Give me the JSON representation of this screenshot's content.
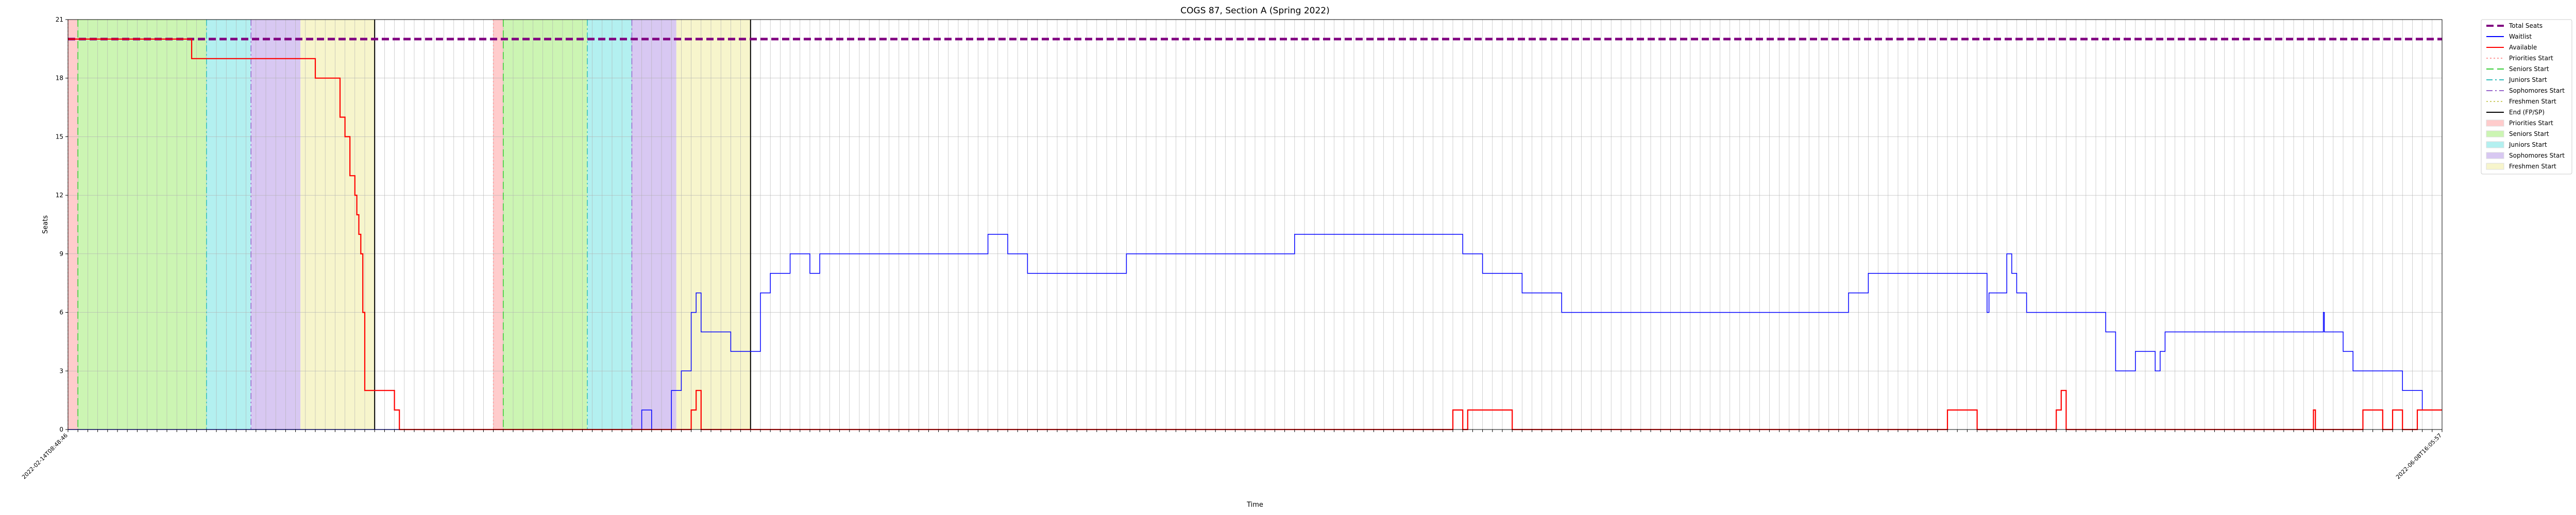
{
  "chart_data": {
    "type": "line",
    "title": "COGS 87, Section A (Spring 2022)",
    "xlabel": "Time",
    "ylabel": "Seats",
    "ylim": [
      0,
      21
    ],
    "yticks": [
      0,
      3,
      6,
      9,
      12,
      15,
      18,
      21
    ],
    "grid": true,
    "legend_placement": "outside-right-top",
    "x_index_range": [
      0,
      240
    ],
    "x_tick_count": 241,
    "x_tick_label_first": "2022-02-14T08:48:46",
    "x_tick_label_last": "2022-06-08T16:05:57",
    "series": [
      {
        "name": "Total Seats",
        "color": "#800080",
        "style": "dashed",
        "points": [
          [
            0,
            20
          ],
          [
            240,
            20
          ]
        ]
      },
      {
        "name": "Waitlist",
        "color": "#0000ff",
        "style": "solid",
        "points": [
          [
            0,
            0
          ],
          [
            58,
            0
          ],
          [
            58,
            1
          ],
          [
            59,
            1
          ],
          [
            59,
            0
          ],
          [
            61,
            0
          ],
          [
            61,
            2
          ],
          [
            62,
            2
          ],
          [
            62,
            3
          ],
          [
            63,
            3
          ],
          [
            63,
            6
          ],
          [
            63.5,
            6
          ],
          [
            63.5,
            7
          ],
          [
            64,
            7
          ],
          [
            64,
            5
          ],
          [
            67,
            5
          ],
          [
            67,
            4
          ],
          [
            70,
            4
          ],
          [
            70,
            7
          ],
          [
            71,
            7
          ],
          [
            71,
            8
          ],
          [
            73,
            8
          ],
          [
            73,
            9
          ],
          [
            75,
            9
          ],
          [
            75,
            8
          ],
          [
            76,
            8
          ],
          [
            76,
            9
          ],
          [
            93,
            9
          ],
          [
            93,
            10
          ],
          [
            95,
            10
          ],
          [
            95,
            9
          ],
          [
            97,
            9
          ],
          [
            97,
            8
          ],
          [
            107,
            8
          ],
          [
            107,
            9
          ],
          [
            124,
            9
          ],
          [
            124,
            10
          ],
          [
            141,
            10
          ],
          [
            141,
            9
          ],
          [
            143,
            9
          ],
          [
            143,
            8
          ],
          [
            147,
            8
          ],
          [
            147,
            7
          ],
          [
            151,
            7
          ],
          [
            151,
            6
          ],
          [
            180,
            6
          ],
          [
            180,
            7
          ],
          [
            182,
            7
          ],
          [
            182,
            8
          ],
          [
            194,
            8
          ],
          [
            194,
            6
          ],
          [
            194.2,
            6
          ],
          [
            194.2,
            7
          ],
          [
            196,
            7
          ],
          [
            196,
            9
          ],
          [
            196.5,
            9
          ],
          [
            196.5,
            8
          ],
          [
            197,
            8
          ],
          [
            197,
            7
          ],
          [
            198,
            7
          ],
          [
            198,
            6
          ],
          [
            206,
            6
          ],
          [
            206,
            5
          ],
          [
            207,
            5
          ],
          [
            207,
            3
          ],
          [
            209,
            3
          ],
          [
            209,
            4
          ],
          [
            211,
            4
          ],
          [
            211,
            3
          ],
          [
            211.5,
            3
          ],
          [
            211.5,
            4
          ],
          [
            212,
            4
          ],
          [
            212,
            5
          ],
          [
            228,
            5
          ],
          [
            228,
            6
          ],
          [
            228.1,
            6
          ],
          [
            228.1,
            5
          ],
          [
            230,
            5
          ],
          [
            230,
            4
          ],
          [
            231,
            4
          ],
          [
            231,
            3
          ],
          [
            236,
            3
          ],
          [
            236,
            2
          ],
          [
            238,
            2
          ],
          [
            238,
            1
          ],
          [
            240,
            1
          ]
        ]
      },
      {
        "name": "Available",
        "color": "#ff0000",
        "style": "solid",
        "points": [
          [
            0,
            20
          ],
          [
            12.5,
            20
          ],
          [
            12.5,
            19
          ],
          [
            25,
            19
          ],
          [
            25,
            18
          ],
          [
            27.5,
            18
          ],
          [
            27.5,
            16
          ],
          [
            28,
            16
          ],
          [
            28,
            15
          ],
          [
            28.5,
            15
          ],
          [
            28.5,
            13
          ],
          [
            29,
            13
          ],
          [
            29,
            12
          ],
          [
            29.2,
            12
          ],
          [
            29.2,
            11
          ],
          [
            29.4,
            11
          ],
          [
            29.4,
            10
          ],
          [
            29.6,
            10
          ],
          [
            29.6,
            9
          ],
          [
            29.8,
            9
          ],
          [
            29.8,
            6
          ],
          [
            30,
            6
          ],
          [
            30,
            2
          ],
          [
            33,
            2
          ],
          [
            33,
            1
          ],
          [
            33.5,
            1
          ],
          [
            33.5,
            0
          ],
          [
            63,
            0
          ],
          [
            63,
            1
          ],
          [
            63.5,
            1
          ],
          [
            63.5,
            2
          ],
          [
            64,
            2
          ],
          [
            64,
            0
          ],
          [
            140,
            0
          ],
          [
            140,
            1
          ],
          [
            141,
            1
          ],
          [
            141,
            0
          ],
          [
            141.5,
            0
          ],
          [
            141.5,
            1
          ],
          [
            146,
            1
          ],
          [
            146,
            0
          ],
          [
            190,
            0
          ],
          [
            190,
            1
          ],
          [
            193,
            1
          ],
          [
            193,
            0
          ],
          [
            201,
            0
          ],
          [
            201,
            1
          ],
          [
            201.5,
            1
          ],
          [
            201.5,
            2
          ],
          [
            202,
            2
          ],
          [
            202,
            0
          ],
          [
            227,
            0
          ],
          [
            227,
            1
          ],
          [
            227.2,
            1
          ],
          [
            227.2,
            0
          ],
          [
            232,
            0
          ],
          [
            232,
            1
          ],
          [
            234,
            1
          ],
          [
            234,
            0
          ],
          [
            235,
            0
          ],
          [
            235,
            1
          ],
          [
            236,
            1
          ],
          [
            236,
            0
          ],
          [
            237.5,
            0
          ],
          [
            237.5,
            1
          ],
          [
            240,
            1
          ]
        ]
      }
    ],
    "phases": [
      {
        "name": "Priorities Start",
        "start": 0,
        "end": 1,
        "fill": "#ffcccc"
      },
      {
        "name": "Seniors Start",
        "start": 1,
        "end": 14,
        "fill": "#ccf5b3"
      },
      {
        "name": "Juniors Start",
        "start": 14,
        "end": 18.5,
        "fill": "#b3f0f0"
      },
      {
        "name": "Sophomores Start",
        "start": 18.5,
        "end": 23.5,
        "fill": "#d8c8f2"
      },
      {
        "name": "Freshmen Start",
        "start": 23.5,
        "end": 31,
        "fill": "#f7f5cc"
      },
      {
        "name": "Priorities Start",
        "start": 43,
        "end": 44,
        "fill": "#ffcccc"
      },
      {
        "name": "Seniors Start",
        "start": 44,
        "end": 52.5,
        "fill": "#ccf5b3"
      },
      {
        "name": "Juniors Start",
        "start": 52.5,
        "end": 57,
        "fill": "#b3f0f0"
      },
      {
        "name": "Sophomores Start",
        "start": 57,
        "end": 61.5,
        "fill": "#d8c8f2"
      },
      {
        "name": "Freshmen Start",
        "start": 61.5,
        "end": 69,
        "fill": "#f7f5cc"
      }
    ],
    "phase_lines": [
      {
        "name": "Priorities Start",
        "x": 0,
        "color": "#ff9999",
        "style": "dotted"
      },
      {
        "name": "Seniors Start",
        "x": 1,
        "color": "#33cc33",
        "style": "dashed"
      },
      {
        "name": "Juniors Start",
        "x": 14,
        "color": "#33bbbb",
        "style": "dashdot"
      },
      {
        "name": "Sophomores Start",
        "x": 18.5,
        "color": "#9966cc",
        "style": "dashdot"
      },
      {
        "name": "End (FP/SP)",
        "x": 31,
        "color": "#000000",
        "style": "solid"
      },
      {
        "name": "Priorities Start",
        "x": 43,
        "color": "#ff9999",
        "style": "dotted"
      },
      {
        "name": "Seniors Start",
        "x": 44,
        "color": "#33cc33",
        "style": "dashed"
      },
      {
        "name": "Juniors Start",
        "x": 52.5,
        "color": "#33bbbb",
        "style": "dashdot"
      },
      {
        "name": "Sophomores Start",
        "x": 57,
        "color": "#9966cc",
        "style": "dashdot"
      },
      {
        "name": "End (FP/SP)",
        "x": 69,
        "color": "#000000",
        "style": "solid"
      }
    ],
    "legend": [
      {
        "label": "Total Seats",
        "kind": "line",
        "color": "#800080",
        "style": "dashed"
      },
      {
        "label": "Waitlist",
        "kind": "line",
        "color": "#0000ff",
        "style": "solid"
      },
      {
        "label": "Available",
        "kind": "line",
        "color": "#ff0000",
        "style": "solid"
      },
      {
        "label": "Priorities Start",
        "kind": "line",
        "color": "#ff9999",
        "style": "dotted"
      },
      {
        "label": "Seniors Start",
        "kind": "line",
        "color": "#33cc33",
        "style": "dashed"
      },
      {
        "label": "Juniors Start",
        "kind": "line",
        "color": "#33bbbb",
        "style": "dashdot"
      },
      {
        "label": "Sophomores Start",
        "kind": "line",
        "color": "#9966cc",
        "style": "dashdot"
      },
      {
        "label": "Freshmen Start",
        "kind": "line",
        "color": "#cccc66",
        "style": "dotted"
      },
      {
        "label": "End (FP/SP)",
        "kind": "line",
        "color": "#000000",
        "style": "solid"
      },
      {
        "label": "Priorities Start",
        "kind": "patch",
        "color": "#ffcccc"
      },
      {
        "label": "Seniors Start",
        "kind": "patch",
        "color": "#ccf5b3"
      },
      {
        "label": "Juniors Start",
        "kind": "patch",
        "color": "#b3f0f0"
      },
      {
        "label": "Sophomores Start",
        "kind": "patch",
        "color": "#d8c8f2"
      },
      {
        "label": "Freshmen Start",
        "kind": "patch",
        "color": "#f7f5cc"
      }
    ]
  }
}
